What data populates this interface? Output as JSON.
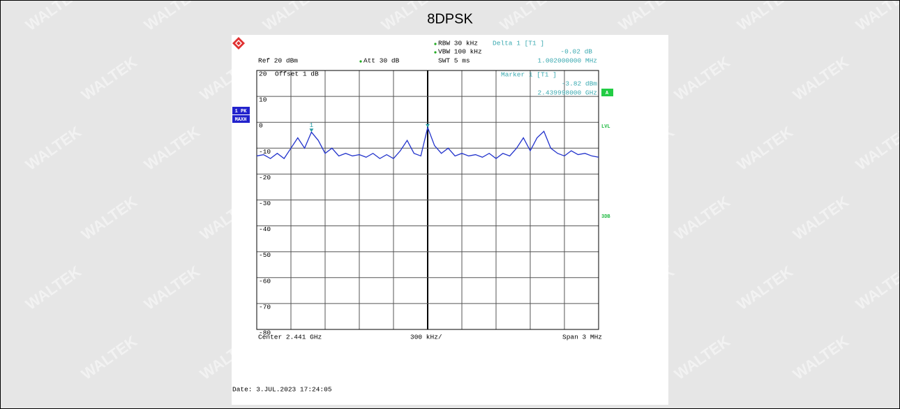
{
  "chart_data": {
    "type": "line",
    "title": "8DPSK",
    "watermark": "WALTEK",
    "annotations": {
      "rbw": "RBW 30 kHz",
      "vbw": "VBW 100 kHz",
      "swt": "SWT 5 ms",
      "ref": "Ref  20 dBm",
      "att": "Att  30 dB",
      "delta_title": "Delta 1 [T1 ]",
      "delta_level": "-0.02 dB",
      "delta_freq": "1.002000000 MHz",
      "offset": "Offset  1 dB",
      "marker_title": "Marker 1 [T1 ]",
      "marker_level": "-3.82 dBm",
      "marker_freq": "2.439998000 GHz",
      "trace_mode_1": "1 PK",
      "trace_mode_2": "MAXH",
      "flag_a": "A",
      "flag_lvl": "LVL",
      "flag_3db": "3DB",
      "center": "Center 2.441 GHz",
      "per_div": "300 kHz/",
      "span": "Span 3 MHz",
      "date": "Date: 3.JUL.2023  17:24:05",
      "marker_label": "1"
    },
    "xlim": [
      2.4395,
      2.4425
    ],
    "xticks": [
      2.4395,
      2.4398,
      2.4401,
      2.4404,
      2.4407,
      2.441,
      2.4413,
      2.4416,
      2.4419,
      2.4422,
      2.4425
    ],
    "ylim": [
      -80,
      20
    ],
    "yticks": [
      20,
      10,
      0,
      -10,
      -20,
      -30,
      -40,
      -50,
      -60,
      -70,
      -80
    ],
    "grid": true,
    "x": [
      2.4395,
      2.43956,
      2.43962,
      2.43968,
      2.43974,
      2.4398,
      2.43986,
      2.43992,
      2.43998,
      2.44004,
      2.4401,
      2.44016,
      2.44022,
      2.44028,
      2.44034,
      2.4404,
      2.44046,
      2.44052,
      2.44058,
      2.44064,
      2.4407,
      2.44076,
      2.44082,
      2.44088,
      2.44094,
      2.441,
      2.44106,
      2.44112,
      2.44118,
      2.44124,
      2.4413,
      2.44136,
      2.44142,
      2.44148,
      2.44154,
      2.4416,
      2.44166,
      2.44172,
      2.44178,
      2.44184,
      2.4419,
      2.44196,
      2.44202,
      2.44208,
      2.44214,
      2.4422,
      2.44226,
      2.44232,
      2.44238,
      2.44244,
      2.4425
    ],
    "series": [
      {
        "color": "#2233cc",
        "values": [
          -13,
          -12.5,
          -14,
          -12,
          -14,
          -10,
          -6,
          -10,
          -3.8,
          -7,
          -12,
          -10,
          -13,
          -12,
          -13,
          -12.5,
          -13.5,
          -12,
          -14,
          -12.5,
          -14,
          -11,
          -7,
          -12,
          -13,
          -2,
          -9,
          -12,
          -10,
          -13,
          -12,
          -13,
          -12.5,
          -13.5,
          -12,
          -14,
          -12,
          -13,
          -10,
          -6,
          -11,
          -6,
          -3.5,
          -10,
          -12,
          -13,
          -11,
          -12.5,
          -12,
          -13,
          -13.5
        ]
      }
    ]
  }
}
